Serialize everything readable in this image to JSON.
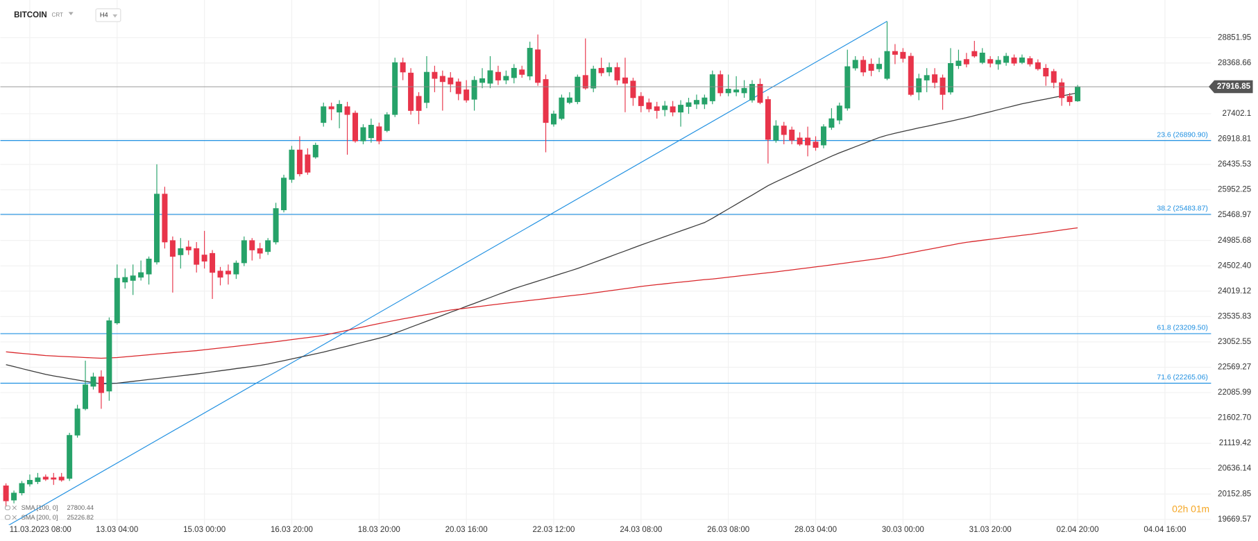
{
  "chart_data": {
    "type": "candlestick",
    "title": "BITCOIN",
    "market": "CRT",
    "interval": "H4",
    "countdown": "02h 01m",
    "grid": true,
    "up_color": "#26a269",
    "down_color": "#e8344a",
    "ylim": [
      19562.5,
      29570.2
    ],
    "yticks": [
      28851.95,
      28368.66,
      27402.1,
      26918.81,
      26435.53,
      25952.25,
      25468.97,
      24985.68,
      {
        "value": 24502.4,
        "label": "24502.40"
      },
      24019.12,
      23535.83,
      23052.55,
      22569.27,
      22085.99,
      {
        "value": 21602.7,
        "label": "21602.70"
      },
      21119.42,
      20636.14,
      20152.85,
      19669.57
    ],
    "categories": [
      null,
      null,
      null,
      "11.03.2023 08:00",
      null,
      null,
      null,
      null,
      null,
      null,
      null,
      null,
      null,
      null,
      "13.03 04:00",
      null,
      null,
      null,
      null,
      null,
      null,
      null,
      null,
      null,
      null,
      "15.03 00:00",
      null,
      null,
      null,
      null,
      null,
      null,
      null,
      null,
      null,
      null,
      "16.03 20:00",
      null,
      null,
      null,
      null,
      null,
      null,
      null,
      null,
      null,
      null,
      "18.03 20:00",
      null,
      null,
      null,
      null,
      null,
      null,
      null,
      null,
      null,
      null,
      "20.03 16:00",
      null,
      null,
      null,
      null,
      null,
      null,
      null,
      null,
      null,
      null,
      "22.03 12:00",
      null,
      null,
      null,
      null,
      null,
      null,
      null,
      null,
      null,
      null,
      "24.03 08:00",
      null,
      null,
      null,
      null,
      null,
      null,
      null,
      null,
      null,
      null,
      "26.03 08:00",
      null,
      null,
      null,
      null,
      null,
      null,
      null,
      null,
      null,
      null,
      "28.03 04:00",
      null,
      null,
      null,
      null,
      null,
      null,
      null,
      null,
      null,
      null,
      "30.03 00:00",
      null,
      null,
      null,
      null,
      null,
      null,
      null,
      null,
      null,
      null,
      "31.03 20:00",
      null,
      null,
      null,
      null,
      null,
      null,
      null,
      null,
      null,
      null,
      "02.04 20:00",
      null,
      null,
      null,
      null,
      null,
      null,
      null,
      null,
      null,
      null,
      "04.04 16:00"
    ],
    "open": [
      20310,
      20035,
      20173,
      20341,
      20387,
      20478,
      20463,
      20478,
      20448,
      21273,
      21777,
      22205,
      22388,
      22113,
      23412,
      24191,
      24222,
      24283,
      24344,
      24573,
      25872,
      24986,
      24711,
      24864,
      24833,
      24711,
      24742,
      24405,
      24405,
      24344,
      24558,
      24986,
      24833,
      24772,
      24955,
      25567,
      26147,
      26713,
      26621,
      26575,
      27232,
      27538,
      27431,
      27538,
      27416,
      26881,
      26942,
      27156,
      27079,
      27385,
      28378,
      28180,
      27736,
      27614,
      28195,
      28118,
      28088,
      28011,
      27859,
      27675,
      27996,
      27981,
      28195,
      28042,
      28088,
      28241,
      28118,
      28623,
      28057,
      27202,
      27309,
      27614,
      27629,
      28134,
      27889,
      28271,
      28195,
      28286,
      28088,
      28027,
      27736,
      27614,
      27538,
      27477,
      27538,
      27431,
      27538,
      27584,
      27584,
      27645,
      28149,
      27798,
      27813,
      27798,
      27660,
      27966,
      27675,
      26896,
      27171,
      27095,
      26942,
      26942,
      26865,
      26804,
      27140,
      27278,
      27507,
      28271,
      28424,
      28348,
      28256,
      28073,
      28592,
      28577,
      28500,
      27813,
      28042,
      28149,
      28088,
      27813,
      28317,
      28439,
      28592,
      28378,
      28439,
      28348,
      28378,
      28470,
      28378,
      28455,
      28378,
      28271,
      28210,
      27996,
      27736,
      27645,
      null,
      null,
      null,
      null,
      null,
      null,
      null,
      null,
      null,
      null,
      null
    ],
    "high": [
      20356,
      20219,
      20402,
      20524,
      20555,
      20524,
      20555,
      20555,
      21319,
      21854,
      22694,
      22465,
      22511,
      23519,
      24528,
      24451,
      24528,
      24604,
      24680,
      26438,
      26010,
      25062,
      25032,
      24986,
      24955,
      25169,
      24803,
      24482,
      24528,
      24604,
      25062,
      25032,
      24940,
      25032,
      25704,
      26239,
      26789,
      26972,
      26743,
      26850,
      27614,
      27614,
      27660,
      27629,
      27461,
      27202,
      27309,
      27232,
      27431,
      28470,
      28470,
      28271,
      27813,
      28500,
      28317,
      28225,
      28195,
      28073,
      28042,
      28118,
      28271,
      28500,
      28317,
      28225,
      28348,
      28317,
      28775,
      28913,
      28149,
      27461,
      27767,
      27813,
      28149,
      28837,
      28317,
      28470,
      28378,
      28378,
      28470,
      28088,
      27813,
      27691,
      27629,
      27645,
      27645,
      27660,
      27706,
      27767,
      27767,
      28225,
      28225,
      28149,
      28118,
      28042,
      28042,
      28073,
      27736,
      27278,
      27247,
      27156,
      27049,
      27156,
      26972,
      27202,
      27507,
      27614,
      28623,
      28500,
      28500,
      28455,
      28470,
      29157,
      28730,
      28653,
      28562,
      28164,
      28271,
      28271,
      28149,
      28653,
      28623,
      28562,
      28791,
      28653,
      28500,
      28500,
      28562,
      28531,
      28531,
      28500,
      28439,
      28348,
      28256,
      28073,
      27798,
      27950,
      null,
      null,
      null,
      null,
      null,
      null,
      null,
      null,
      null,
      null,
      null
    ],
    "low": [
      19913,
      19974,
      20127,
      20295,
      20341,
      20402,
      20326,
      20387,
      20402,
      21227,
      21747,
      22144,
      21777,
      21930,
      23382,
      24069,
      23947,
      24222,
      24146,
      24528,
      24833,
      23993,
      24451,
      24711,
      24375,
      24451,
      23871,
      24130,
      24146,
      24253,
      24497,
      24604,
      24635,
      24711,
      24910,
      25521,
      26086,
      26208,
      26239,
      26545,
      27156,
      27278,
      27125,
      26621,
      26850,
      26820,
      26850,
      26820,
      27049,
      27339,
      28042,
      27385,
      27202,
      27507,
      27813,
      27461,
      27813,
      27660,
      27614,
      27461,
      27889,
      27889,
      27950,
      27966,
      27981,
      28088,
      28042,
      27935,
      26667,
      27156,
      27278,
      27584,
      27584,
      27859,
      27813,
      28118,
      28118,
      27950,
      27431,
      27553,
      27431,
      27431,
      27309,
      27354,
      27354,
      27156,
      27400,
      27492,
      27492,
      27584,
      27736,
      27736,
      27736,
      27706,
      27614,
      27584,
      26453,
      26850,
      26820,
      26820,
      26789,
      26590,
      26697,
      26743,
      27095,
      27202,
      27461,
      28225,
      28118,
      28118,
      28195,
      28042,
      28348,
      28378,
      27736,
      27660,
      27813,
      27889,
      27477,
      27767,
      28256,
      28286,
      28470,
      28348,
      28286,
      28241,
      28317,
      28317,
      28348,
      28302,
      28225,
      27935,
      27889,
      27553,
      27553,
      27629,
      null,
      null,
      null,
      null,
      null,
      null,
      null,
      null,
      null,
      null,
      null
    ],
    "close": [
      20020,
      20173,
      20356,
      20417,
      20463,
      20433,
      20433,
      20417,
      21273,
      21777,
      22236,
      22388,
      22083,
      23458,
      24268,
      24283,
      24314,
      24375,
      24635,
      25872,
      24955,
      24680,
      24833,
      24803,
      24528,
      24589,
      24375,
      24283,
      24344,
      24558,
      24986,
      24803,
      24742,
      24986,
      25597,
      26178,
      26713,
      26254,
      26285,
      26804,
      27538,
      27492,
      27584,
      27385,
      26881,
      27140,
      27186,
      26881,
      27385,
      28378,
      28195,
      27461,
      27461,
      28195,
      28073,
      28011,
      27966,
      27782,
      27660,
      28042,
      28073,
      28225,
      28042,
      28118,
      28271,
      28149,
      28653,
      27996,
      27232,
      27400,
      27706,
      27706,
      28103,
      27889,
      28256,
      28180,
      28286,
      28042,
      27981,
      27706,
      27553,
      27492,
      27461,
      27553,
      27431,
      27568,
      27614,
      27660,
      27706,
      28149,
      27798,
      27874,
      27859,
      27889,
      27966,
      27614,
      26911,
      27171,
      27003,
      26896,
      26820,
      26804,
      26758,
      27156,
      27309,
      27553,
      28302,
      28424,
      28195,
      28225,
      28348,
      28592,
      28531,
      28455,
      27767,
      28073,
      28134,
      27996,
      27767,
      28363,
      28409,
      28348,
      28500,
      28562,
      28363,
      28424,
      28500,
      28363,
      28470,
      28348,
      28256,
      28118,
      27996,
      27706,
      27629,
      27916.85,
      null,
      null,
      null,
      null,
      null,
      null,
      null,
      null,
      null,
      null,
      null
    ],
    "series": [
      {
        "name": "SMA [100, 0]",
        "color": "#3a3a3a",
        "values": [
          22618,
          22581,
          22544,
          22507,
          22470,
          22433,
          22404,
          22378,
          22353,
          22327,
          22302,
          22276,
          22251,
          22258,
          22266,
          22283,
          22301,
          22318,
          22336,
          22353,
          22371,
          22388,
          22406,
          22423,
          22441,
          22460,
          22481,
          22502,
          22522,
          22543,
          22564,
          22585,
          22605,
          22631,
          22663,
          22695,
          22728,
          22760,
          22792,
          22825,
          22858,
          22896,
          22934,
          22971,
          23009,
          23047,
          23084,
          23122,
          23163,
          23220,
          23276,
          23333,
          23390,
          23446,
          23503,
          23560,
          23617,
          23673,
          23730,
          23786,
          23843,
          23899,
          23956,
          24012,
          24069,
          24117,
          24165,
          24212,
          24260,
          24308,
          24356,
          24403,
          24451,
          24507,
          24563,
          24619,
          24675,
          24731,
          24787,
          24843,
          24899,
          24953,
          25006,
          25060,
          25113,
          25167,
          25220,
          25274,
          25327,
          25409,
          25498,
          25587,
          25675,
          25764,
          25852,
          25941,
          26030,
          26105,
          26175,
          26244,
          26314,
          26384,
          26454,
          26523,
          26593,
          26656,
          26714,
          26773,
          26831,
          26890,
          26948,
          26993,
          27029,
          27065,
          27098,
          27131,
          27163,
          27196,
          27228,
          27260,
          27293,
          27328,
          27365,
          27403,
          27441,
          27478,
          27516,
          27554,
          27591,
          27622,
          27652,
          27682,
          27712,
          27742,
          27771,
          27800.44,
          null,
          null,
          null,
          null,
          null,
          null,
          null,
          null,
          null,
          null,
          null
        ]
      },
      {
        "name": "SMA [200, 0]",
        "color": "#d9262a",
        "values": [
          22862,
          22848,
          22834,
          22820,
          22806,
          22792,
          22783,
          22776,
          22769,
          22762,
          22755,
          22748,
          22740,
          22748,
          22755,
          22768,
          22781,
          22794,
          22808,
          22821,
          22834,
          22847,
          22860,
          22873,
          22886,
          22902,
          22919,
          22936,
          22953,
          22970,
          22987,
          23004,
          23021,
          23038,
          23057,
          23077,
          23096,
          23116,
          23135,
          23155,
          23178,
          23210,
          23242,
          23274,
          23306,
          23338,
          23370,
          23402,
          23433,
          23461,
          23490,
          23518,
          23547,
          23575,
          23603,
          23632,
          23660,
          23678,
          23697,
          23716,
          23734,
          23753,
          23772,
          23790,
          23809,
          23826,
          23843,
          23861,
          23878,
          23895,
          23912,
          23930,
          23947,
          23965,
          23986,
          24006,
          24027,
          24047,
          24068,
          24088,
          24109,
          24128,
          24144,
          24160,
          24176,
          24192,
          24208,
          24224,
          24240,
          24252,
          24269,
          24286,
          24303,
          24320,
          24337,
          24354,
          24371,
          24388,
          24407,
          24426,
          24445,
          24463,
          24482,
          24501,
          24520,
          24540,
          24560,
          24581,
          24601,
          24621,
          24642,
          24667,
          24696,
          24724,
          24753,
          24782,
          24811,
          24839,
          24868,
          24897,
          24925,
          24951,
          24970,
          24989,
          25008,
          25027,
          25046,
          25065,
          25084,
          25101,
          25122,
          25143,
          25164,
          25185,
          25206,
          25226.82,
          null,
          null,
          null,
          null,
          null,
          null,
          null,
          null,
          null,
          null,
          null
        ]
      }
    ],
    "fibonacci": {
      "color": "#1e8fe1",
      "high": 29165.3,
      "low": 19528.1,
      "levels": [
        {
          "value": 26890.9,
          "label": "23.6 (26890.90)"
        },
        {
          "value": 25483.87,
          "label": "38.2 (25483.87)"
        },
        {
          "value": 23209.5,
          "label": "61.8 (23209.50)"
        },
        {
          "value": 22265.06,
          "label": "71.6 (22265.06)"
        }
      ]
    }
  }
}
